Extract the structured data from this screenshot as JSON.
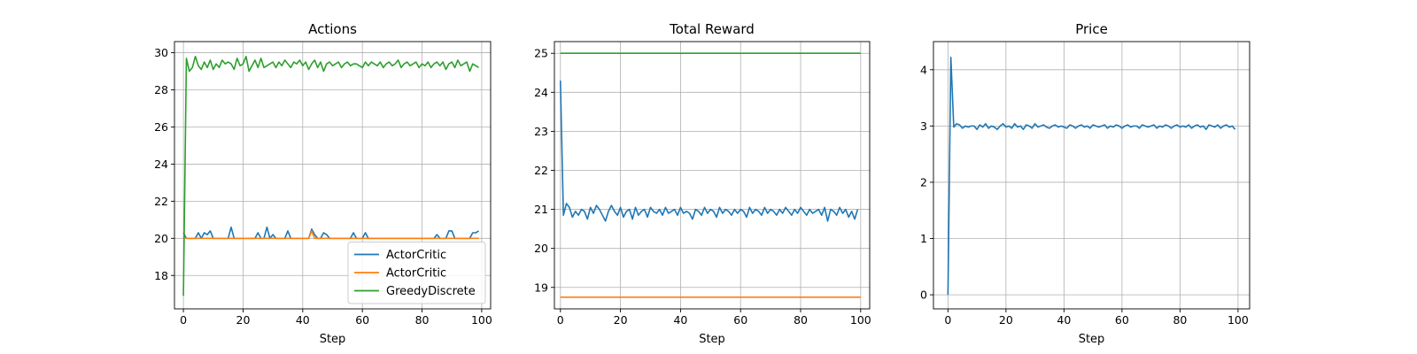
{
  "chart_data": [
    {
      "type": "line",
      "title": "Actions",
      "xlabel": "Step",
      "ylabel": "",
      "xlim": [
        -3,
        103
      ],
      "ylim": [
        16.2,
        30.6
      ],
      "xticks": [
        0,
        20,
        40,
        60,
        80,
        100
      ],
      "yticks": [
        18,
        20,
        22,
        24,
        26,
        28,
        30
      ],
      "grid": true,
      "legend": "bottom-right",
      "series": [
        {
          "name": "ActorCritic",
          "color": "#1f77b4",
          "x": [
            0,
            1,
            2,
            3,
            4,
            5,
            6,
            7,
            8,
            9,
            10,
            11,
            12,
            13,
            14,
            15,
            16,
            17,
            18,
            19,
            20,
            21,
            22,
            23,
            24,
            25,
            26,
            27,
            28,
            29,
            30,
            31,
            32,
            33,
            34,
            35,
            36,
            37,
            38,
            39,
            40,
            41,
            42,
            43,
            44,
            45,
            46,
            47,
            48,
            49,
            50,
            51,
            52,
            53,
            54,
            55,
            56,
            57,
            58,
            59,
            60,
            61,
            62,
            63,
            64,
            65,
            66,
            67,
            68,
            69,
            70,
            71,
            72,
            73,
            74,
            75,
            76,
            77,
            78,
            79,
            80,
            81,
            82,
            83,
            84,
            85,
            86,
            87,
            88,
            89,
            90,
            91,
            92,
            93,
            94,
            95,
            96,
            97,
            98,
            99
          ],
          "y": [
            20.3,
            20.0,
            20.0,
            20.0,
            20.0,
            20.3,
            20.0,
            20.3,
            20.2,
            20.4,
            20.0,
            20.0,
            20.0,
            20.0,
            20.0,
            20.0,
            20.6,
            20.0,
            20.0,
            20.0,
            20.0,
            20.0,
            20.0,
            20.0,
            20.0,
            20.3,
            20.0,
            20.0,
            20.6,
            20.0,
            20.2,
            20.0,
            20.0,
            20.0,
            20.0,
            20.4,
            20.0,
            20.0,
            20.0,
            20.0,
            20.0,
            20.0,
            20.0,
            20.5,
            20.2,
            20.0,
            20.0,
            20.3,
            20.2,
            20.0,
            20.0,
            20.0,
            20.0,
            20.0,
            20.0,
            20.0,
            20.0,
            20.3,
            20.0,
            20.0,
            20.0,
            20.3,
            20.0,
            20.0,
            20.0,
            20.0,
            20.0,
            20.0,
            20.0,
            20.0,
            20.0,
            20.0,
            20.0,
            20.0,
            20.0,
            20.0,
            20.0,
            20.0,
            20.0,
            20.0,
            20.0,
            20.0,
            20.0,
            20.0,
            20.0,
            20.2,
            20.0,
            20.0,
            20.0,
            20.4,
            20.4,
            20.0,
            20.0,
            20.0,
            20.0,
            20.0,
            20.0,
            20.3,
            20.3,
            20.4
          ]
        },
        {
          "name": "ActorCritic",
          "color": "#ff7f0e",
          "x": [
            0,
            1,
            2,
            3,
            4,
            5,
            6,
            7,
            8,
            9,
            10,
            11,
            12,
            13,
            14,
            15,
            16,
            17,
            18,
            19,
            20,
            21,
            22,
            23,
            24,
            25,
            26,
            27,
            28,
            29,
            30,
            31,
            32,
            33,
            34,
            35,
            36,
            37,
            38,
            39,
            40,
            41,
            42,
            43,
            44,
            45,
            46,
            47,
            48,
            49,
            50,
            51,
            52,
            53,
            54,
            55,
            56,
            57,
            58,
            59,
            60,
            61,
            62,
            63,
            64,
            65,
            66,
            67,
            68,
            69,
            70,
            71,
            72,
            73,
            74,
            75,
            76,
            77,
            78,
            79,
            80,
            81,
            82,
            83,
            84,
            85,
            86,
            87,
            88,
            89,
            90,
            91,
            92,
            93,
            94,
            95,
            96,
            97,
            98,
            99
          ],
          "y": [
            20.1,
            20.0,
            20.0,
            20.0,
            20.0,
            20.0,
            20.0,
            20.0,
            20.0,
            20.0,
            20.0,
            20.0,
            20.0,
            20.0,
            20.0,
            20.0,
            20.0,
            20.0,
            20.0,
            20.0,
            20.0,
            20.0,
            20.0,
            20.0,
            20.0,
            20.0,
            20.0,
            20.0,
            20.0,
            20.0,
            20.0,
            20.0,
            20.0,
            20.0,
            20.0,
            20.0,
            20.0,
            20.0,
            20.0,
            20.0,
            20.0,
            20.0,
            20.0,
            20.4,
            20.0,
            20.0,
            20.0,
            20.0,
            20.0,
            20.0,
            20.0,
            20.0,
            20.0,
            20.0,
            20.0,
            20.0,
            20.0,
            20.0,
            20.0,
            20.0,
            20.0,
            20.0,
            20.0,
            20.0,
            20.0,
            20.0,
            20.0,
            20.0,
            20.0,
            20.0,
            20.0,
            20.0,
            20.0,
            20.0,
            20.0,
            20.0,
            20.0,
            20.0,
            20.0,
            20.0,
            20.0,
            20.0,
            20.0,
            20.0,
            20.0,
            20.0,
            20.0,
            20.0,
            20.0,
            20.0,
            20.0,
            20.0,
            20.0,
            20.0,
            20.0,
            20.0,
            20.0,
            20.0,
            20.0,
            20.0
          ]
        },
        {
          "name": "GreedyDiscrete",
          "color": "#2ca02c",
          "x": [
            0,
            1,
            2,
            3,
            4,
            5,
            6,
            7,
            8,
            9,
            10,
            11,
            12,
            13,
            14,
            15,
            16,
            17,
            18,
            19,
            20,
            21,
            22,
            23,
            24,
            25,
            26,
            27,
            28,
            29,
            30,
            31,
            32,
            33,
            34,
            35,
            36,
            37,
            38,
            39,
            40,
            41,
            42,
            43,
            44,
            45,
            46,
            47,
            48,
            49,
            50,
            51,
            52,
            53,
            54,
            55,
            56,
            57,
            58,
            59,
            60,
            61,
            62,
            63,
            64,
            65,
            66,
            67,
            68,
            69,
            70,
            71,
            72,
            73,
            74,
            75,
            76,
            77,
            78,
            79,
            80,
            81,
            82,
            83,
            84,
            85,
            86,
            87,
            88,
            89,
            90,
            91,
            92,
            93,
            94,
            95,
            96,
            97,
            98,
            99
          ],
          "y": [
            16.9,
            29.7,
            29.0,
            29.2,
            29.8,
            29.3,
            29.1,
            29.5,
            29.2,
            29.6,
            29.1,
            29.4,
            29.2,
            29.6,
            29.4,
            29.5,
            29.4,
            29.1,
            29.7,
            29.3,
            29.4,
            29.8,
            29.0,
            29.3,
            29.6,
            29.2,
            29.7,
            29.2,
            29.3,
            29.4,
            29.5,
            29.2,
            29.5,
            29.3,
            29.6,
            29.4,
            29.2,
            29.5,
            29.4,
            29.6,
            29.3,
            29.5,
            29.1,
            29.4,
            29.6,
            29.2,
            29.5,
            29.0,
            29.4,
            29.5,
            29.3,
            29.4,
            29.5,
            29.2,
            29.4,
            29.5,
            29.3,
            29.4,
            29.4,
            29.3,
            29.2,
            29.5,
            29.3,
            29.5,
            29.4,
            29.3,
            29.5,
            29.2,
            29.4,
            29.5,
            29.3,
            29.4,
            29.6,
            29.2,
            29.4,
            29.5,
            29.3,
            29.4,
            29.5,
            29.2,
            29.4,
            29.3,
            29.5,
            29.2,
            29.4,
            29.5,
            29.3,
            29.5,
            29.1,
            29.4,
            29.5,
            29.2,
            29.6,
            29.3,
            29.4,
            29.5,
            29.0,
            29.4,
            29.3,
            29.2
          ]
        }
      ]
    },
    {
      "type": "line",
      "title": "Total Reward",
      "xlabel": "Step",
      "ylabel": "",
      "xlim": [
        -2,
        103
      ],
      "ylim": [
        18.45,
        25.3
      ],
      "xticks": [
        0,
        20,
        40,
        60,
        80,
        100
      ],
      "yticks": [
        19,
        20,
        21,
        22,
        23,
        24,
        25
      ],
      "grid": true,
      "series": [
        {
          "color": "#1f77b4",
          "x": [
            0,
            1,
            2,
            3,
            4,
            5,
            6,
            7,
            8,
            9,
            10,
            11,
            12,
            13,
            14,
            15,
            16,
            17,
            18,
            19,
            20,
            21,
            22,
            23,
            24,
            25,
            26,
            27,
            28,
            29,
            30,
            31,
            32,
            33,
            34,
            35,
            36,
            37,
            38,
            39,
            40,
            41,
            42,
            43,
            44,
            45,
            46,
            47,
            48,
            49,
            50,
            51,
            52,
            53,
            54,
            55,
            56,
            57,
            58,
            59,
            60,
            61,
            62,
            63,
            64,
            65,
            66,
            67,
            68,
            69,
            70,
            71,
            72,
            73,
            74,
            75,
            76,
            77,
            78,
            79,
            80,
            81,
            82,
            83,
            84,
            85,
            86,
            87,
            88,
            89,
            90,
            91,
            92,
            93,
            94,
            95,
            96,
            97,
            98,
            99
          ],
          "y": [
            24.3,
            20.85,
            21.15,
            21.05,
            20.8,
            20.95,
            20.85,
            21.0,
            20.95,
            20.75,
            21.05,
            20.9,
            21.1,
            21.0,
            20.85,
            20.7,
            20.95,
            21.1,
            20.95,
            20.85,
            21.05,
            20.8,
            20.95,
            21.0,
            20.75,
            21.05,
            20.85,
            20.95,
            21.0,
            20.8,
            21.05,
            20.95,
            20.9,
            21.0,
            20.85,
            21.05,
            20.9,
            20.95,
            21.0,
            20.85,
            21.05,
            20.9,
            20.95,
            20.9,
            20.75,
            21.0,
            20.95,
            20.85,
            21.05,
            20.9,
            21.0,
            20.95,
            20.8,
            21.05,
            20.9,
            21.0,
            20.95,
            20.85,
            21.0,
            20.9,
            21.0,
            20.95,
            20.8,
            21.05,
            20.9,
            21.0,
            20.95,
            20.85,
            21.05,
            20.9,
            21.0,
            20.95,
            20.85,
            21.0,
            20.9,
            21.05,
            20.95,
            20.85,
            21.0,
            20.9,
            21.05,
            20.95,
            20.85,
            21.0,
            20.9,
            20.95,
            21.0,
            20.85,
            21.05,
            20.7,
            21.0,
            20.95,
            20.85,
            21.05,
            20.9,
            21.0,
            20.8,
            20.95,
            20.75,
            21.0
          ]
        },
        {
          "color": "#ff7f0e",
          "x": [
            0,
            100
          ],
          "y": [
            18.75,
            18.75
          ]
        },
        {
          "color": "#2ca02c",
          "x": [
            0,
            100
          ],
          "y": [
            25.0,
            25.0
          ]
        }
      ]
    },
    {
      "type": "line",
      "title": "Price",
      "xlabel": "Step",
      "ylabel": "",
      "xlim": [
        -5,
        104
      ],
      "ylim": [
        -0.25,
        4.5
      ],
      "xticks": [
        0,
        20,
        40,
        60,
        80,
        100
      ],
      "yticks": [
        0,
        1,
        2,
        3,
        4
      ],
      "grid": true,
      "series": [
        {
          "color": "#1f77b4",
          "x": [
            0,
            1,
            2,
            3,
            4,
            5,
            6,
            7,
            8,
            9,
            10,
            11,
            12,
            13,
            14,
            15,
            16,
            17,
            18,
            19,
            20,
            21,
            22,
            23,
            24,
            25,
            26,
            27,
            28,
            29,
            30,
            31,
            32,
            33,
            34,
            35,
            36,
            37,
            38,
            39,
            40,
            41,
            42,
            43,
            44,
            45,
            46,
            47,
            48,
            49,
            50,
            51,
            52,
            53,
            54,
            55,
            56,
            57,
            58,
            59,
            60,
            61,
            62,
            63,
            64,
            65,
            66,
            67,
            68,
            69,
            70,
            71,
            72,
            73,
            74,
            75,
            76,
            77,
            78,
            79,
            80,
            81,
            82,
            83,
            84,
            85,
            86,
            87,
            88,
            89,
            90,
            91,
            92,
            93,
            94,
            95,
            96,
            97,
            98,
            99
          ],
          "y": [
            0.0,
            4.22,
            2.98,
            3.04,
            3.02,
            2.96,
            3.0,
            2.98,
            3.0,
            3.0,
            2.94,
            3.02,
            2.98,
            3.04,
            2.96,
            3.0,
            2.98,
            2.94,
            3.0,
            3.04,
            2.98,
            3.0,
            2.96,
            3.04,
            2.98,
            3.0,
            2.94,
            3.02,
            3.0,
            2.96,
            3.04,
            2.98,
            3.0,
            3.02,
            2.98,
            2.96,
            3.0,
            3.02,
            2.98,
            3.0,
            2.98,
            2.96,
            3.02,
            3.0,
            2.96,
            3.0,
            3.02,
            2.98,
            3.0,
            2.96,
            3.02,
            3.0,
            2.98,
            3.0,
            3.02,
            2.96,
            3.0,
            2.98,
            3.02,
            3.0,
            2.96,
            3.0,
            3.02,
            2.98,
            3.0,
            3.0,
            2.96,
            3.02,
            3.0,
            2.98,
            3.0,
            3.02,
            2.96,
            3.0,
            2.98,
            3.02,
            3.0,
            2.96,
            3.0,
            3.02,
            2.98,
            3.0,
            2.98,
            3.02,
            2.96,
            3.0,
            3.02,
            2.98,
            3.0,
            2.94,
            3.02,
            3.0,
            2.98,
            3.02,
            2.96,
            3.0,
            3.02,
            2.98,
            3.0,
            2.94
          ]
        }
      ]
    }
  ]
}
